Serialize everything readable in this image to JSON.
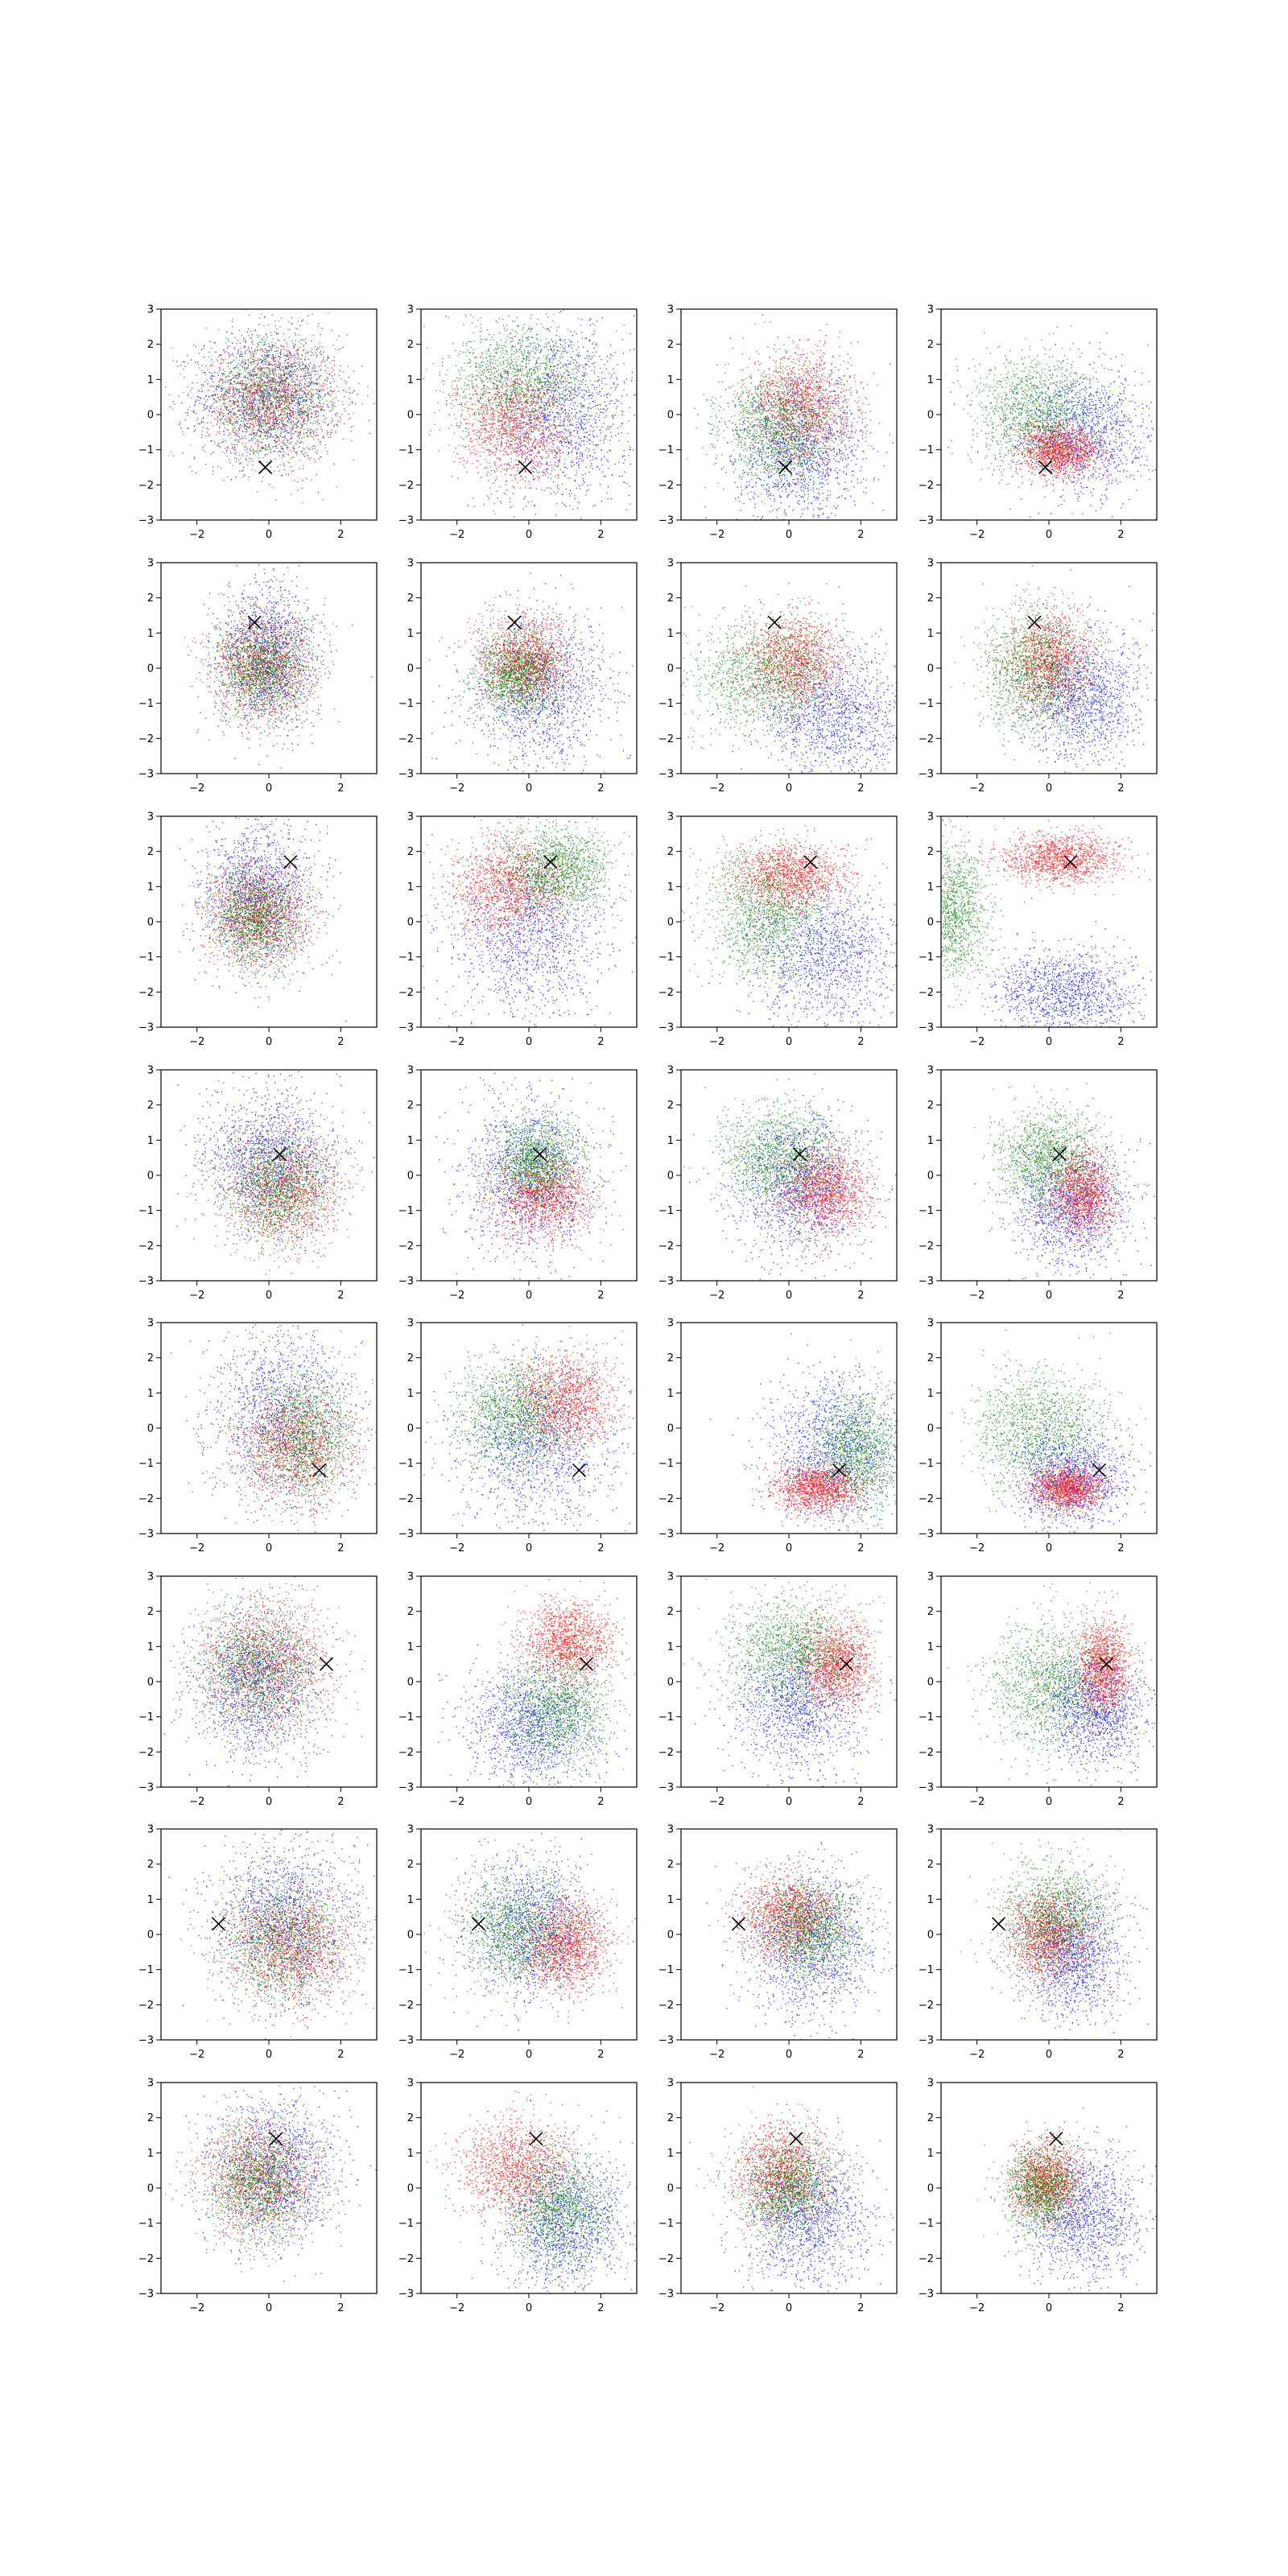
{
  "chart_data": {
    "type": "scatter",
    "layout": {
      "rows": 8,
      "cols": 4
    },
    "xlim": [
      -3,
      3
    ],
    "ylim": [
      -3,
      3
    ],
    "xticks": [
      -2,
      0,
      2
    ],
    "yticks": [
      -3,
      -2,
      -1,
      0,
      1,
      2,
      3
    ],
    "xtick_labels": [
      "−2",
      "0",
      "2"
    ],
    "ytick_labels": [
      "−3",
      "−2",
      "−1",
      "0",
      "1",
      "2",
      "3"
    ],
    "grid": false,
    "marker_label": "×",
    "colors": {
      "blue": "#0000ff",
      "red": "#ff0000",
      "green": "#008000",
      "marker": "#000000"
    },
    "note": "Each subplot shows three point clouds (blue, red, green) represented here as cluster centers and spreads in data units, plus one black x marker.",
    "rows": [
      {
        "marker": [
          -0.1,
          -1.5
        ],
        "panels": [
          [
            {
              "c": "blue",
              "cx": 0.0,
              "cy": 0.5,
              "sx": 1.0,
              "sy": 0.9
            },
            {
              "c": "red",
              "cx": 0.0,
              "cy": 0.4,
              "sx": 0.9,
              "sy": 0.85
            },
            {
              "c": "green",
              "cx": 0.0,
              "cy": 0.5,
              "sx": 0.9,
              "sy": 0.85
            }
          ],
          [
            {
              "c": "blue",
              "cx": 0.9,
              "cy": 0.0,
              "sx": 1.0,
              "sy": 1.3
            },
            {
              "c": "red",
              "cx": -0.4,
              "cy": -0.3,
              "sx": 0.8,
              "sy": 0.8
            },
            {
              "c": "green",
              "cx": -0.2,
              "cy": 1.0,
              "sx": 1.0,
              "sy": 0.8
            }
          ],
          [
            {
              "c": "blue",
              "cx": 0.3,
              "cy": -1.0,
              "sx": 0.9,
              "sy": 1.0
            },
            {
              "c": "red",
              "cx": 0.4,
              "cy": 0.3,
              "sx": 0.7,
              "sy": 0.8
            },
            {
              "c": "green",
              "cx": -0.3,
              "cy": -0.4,
              "sx": 0.8,
              "sy": 0.8
            }
          ],
          [
            {
              "c": "blue",
              "cx": 0.9,
              "cy": -0.6,
              "sx": 1.0,
              "sy": 0.9
            },
            {
              "c": "red",
              "cx": 0.3,
              "cy": -1.0,
              "sx": 0.55,
              "sy": 0.35
            },
            {
              "c": "green",
              "cx": -0.3,
              "cy": 0.1,
              "sx": 0.9,
              "sy": 0.8
            }
          ]
        ]
      },
      {
        "marker": [
          -0.4,
          1.3
        ],
        "panels": [
          [
            {
              "c": "blue",
              "cx": -0.1,
              "cy": 0.4,
              "sx": 0.7,
              "sy": 1.0
            },
            {
              "c": "red",
              "cx": -0.2,
              "cy": 0.0,
              "sx": 0.7,
              "sy": 0.8
            },
            {
              "c": "green",
              "cx": -0.2,
              "cy": 0.0,
              "sx": 0.6,
              "sy": 0.7
            }
          ],
          [
            {
              "c": "blue",
              "cx": 0.3,
              "cy": -0.6,
              "sx": 1.0,
              "sy": 1.1
            },
            {
              "c": "red",
              "cx": -0.1,
              "cy": 0.2,
              "sx": 0.6,
              "sy": 0.6
            },
            {
              "c": "green",
              "cx": -0.3,
              "cy": -0.2,
              "sx": 0.6,
              "sy": 0.6
            }
          ],
          [
            {
              "c": "blue",
              "cx": 1.3,
              "cy": -1.4,
              "sx": 1.0,
              "sy": 0.9
            },
            {
              "c": "red",
              "cx": 0.2,
              "cy": 0.2,
              "sx": 0.7,
              "sy": 0.7
            },
            {
              "c": "green",
              "cx": -0.7,
              "cy": -0.2,
              "sx": 1.0,
              "sy": 0.8
            }
          ],
          [
            {
              "c": "blue",
              "cx": 1.0,
              "cy": -0.8,
              "sx": 0.8,
              "sy": 0.9
            },
            {
              "c": "red",
              "cx": 0.0,
              "cy": 0.2,
              "sx": 0.6,
              "sy": 0.7
            },
            {
              "c": "green",
              "cx": -0.4,
              "cy": 0.0,
              "sx": 0.7,
              "sy": 0.9
            }
          ]
        ]
      },
      {
        "marker": [
          0.6,
          1.7
        ],
        "panels": [
          [
            {
              "c": "blue",
              "cx": -0.3,
              "cy": 0.8,
              "sx": 0.8,
              "sy": 1.0
            },
            {
              "c": "red",
              "cx": -0.3,
              "cy": 0.2,
              "sx": 0.7,
              "sy": 0.7
            },
            {
              "c": "green",
              "cx": -0.4,
              "cy": 0.1,
              "sx": 0.6,
              "sy": 0.7
            }
          ],
          [
            {
              "c": "blue",
              "cx": 0.0,
              "cy": -0.5,
              "sx": 1.1,
              "sy": 1.2
            },
            {
              "c": "red",
              "cx": -0.6,
              "cy": 1.0,
              "sx": 0.8,
              "sy": 0.7
            },
            {
              "c": "green",
              "cx": 0.8,
              "cy": 1.5,
              "sx": 0.7,
              "sy": 0.6
            }
          ],
          [
            {
              "c": "blue",
              "cx": 1.0,
              "cy": -1.0,
              "sx": 1.0,
              "sy": 1.0
            },
            {
              "c": "red",
              "cx": 0.0,
              "cy": 1.3,
              "sx": 0.8,
              "sy": 0.45
            },
            {
              "c": "green",
              "cx": -0.7,
              "cy": 0.2,
              "sx": 0.8,
              "sy": 0.9
            }
          ],
          [
            {
              "c": "blue",
              "cx": 0.4,
              "cy": -2.0,
              "sx": 1.0,
              "sy": 0.6
            },
            {
              "c": "red",
              "cx": 0.3,
              "cy": 1.8,
              "sx": 0.8,
              "sy": 0.35
            },
            {
              "c": "green",
              "cx": -2.7,
              "cy": 0.3,
              "sx": 0.5,
              "sy": 1.0
            }
          ]
        ]
      },
      {
        "marker": [
          0.3,
          0.6
        ],
        "panels": [
          [
            {
              "c": "blue",
              "cx": 0.0,
              "cy": 0.5,
              "sx": 0.9,
              "sy": 1.0
            },
            {
              "c": "red",
              "cx": 0.4,
              "cy": -0.4,
              "sx": 0.8,
              "sy": 0.8
            },
            {
              "c": "green",
              "cx": 0.2,
              "cy": -0.3,
              "sx": 0.7,
              "sy": 0.8
            }
          ],
          [
            {
              "c": "blue",
              "cx": 0.0,
              "cy": 0.0,
              "sx": 0.9,
              "sy": 1.2
            },
            {
              "c": "red",
              "cx": 0.4,
              "cy": -0.6,
              "sx": 0.7,
              "sy": 0.6
            },
            {
              "c": "green",
              "cx": 0.2,
              "cy": 0.4,
              "sx": 0.6,
              "sy": 0.6
            }
          ],
          [
            {
              "c": "blue",
              "cx": 0.3,
              "cy": -0.3,
              "sx": 0.9,
              "sy": 1.0
            },
            {
              "c": "red",
              "cx": 1.0,
              "cy": -0.4,
              "sx": 0.6,
              "sy": 0.6
            },
            {
              "c": "green",
              "cx": -0.3,
              "cy": 0.5,
              "sx": 0.8,
              "sy": 0.7
            }
          ],
          [
            {
              "c": "blue",
              "cx": 0.6,
              "cy": -0.9,
              "sx": 0.8,
              "sy": 0.8
            },
            {
              "c": "red",
              "cx": 0.9,
              "cy": -0.5,
              "sx": 0.45,
              "sy": 0.6
            },
            {
              "c": "green",
              "cx": 0.0,
              "cy": 0.5,
              "sx": 0.7,
              "sy": 0.7
            }
          ]
        ]
      },
      {
        "marker": [
          1.4,
          -1.2
        ],
        "panels": [
          [
            {
              "c": "blue",
              "cx": 0.3,
              "cy": 0.4,
              "sx": 1.0,
              "sy": 1.3
            },
            {
              "c": "red",
              "cx": 0.7,
              "cy": -0.5,
              "sx": 0.8,
              "sy": 0.8
            },
            {
              "c": "green",
              "cx": 0.9,
              "cy": -0.2,
              "sx": 0.7,
              "sy": 0.9
            }
          ],
          [
            {
              "c": "blue",
              "cx": 0.2,
              "cy": -0.5,
              "sx": 1.1,
              "sy": 1.1
            },
            {
              "c": "red",
              "cx": 1.0,
              "cy": 0.8,
              "sx": 0.7,
              "sy": 0.7
            },
            {
              "c": "green",
              "cx": -0.4,
              "cy": 0.4,
              "sx": 0.8,
              "sy": 0.8
            }
          ],
          [
            {
              "c": "blue",
              "cx": 1.2,
              "cy": -0.6,
              "sx": 0.9,
              "sy": 1.0
            },
            {
              "c": "red",
              "cx": 0.8,
              "cy": -1.7,
              "sx": 0.6,
              "sy": 0.35
            },
            {
              "c": "green",
              "cx": 1.9,
              "cy": -0.6,
              "sx": 0.6,
              "sy": 0.8
            }
          ],
          [
            {
              "c": "blue",
              "cx": 0.6,
              "cy": -1.4,
              "sx": 0.8,
              "sy": 0.7
            },
            {
              "c": "red",
              "cx": 0.5,
              "cy": -1.7,
              "sx": 0.5,
              "sy": 0.3
            },
            {
              "c": "green",
              "cx": -0.3,
              "cy": 0.0,
              "sx": 0.9,
              "sy": 0.8
            }
          ]
        ]
      },
      {
        "marker": [
          1.6,
          0.5
        ],
        "panels": [
          [
            {
              "c": "blue",
              "cx": -0.3,
              "cy": -0.1,
              "sx": 0.9,
              "sy": 1.0
            },
            {
              "c": "red",
              "cx": -0.1,
              "cy": 0.5,
              "sx": 0.9,
              "sy": 0.9
            },
            {
              "c": "green",
              "cx": -0.3,
              "cy": 0.4,
              "sx": 0.8,
              "sy": 0.9
            }
          ],
          [
            {
              "c": "blue",
              "cx": 0.1,
              "cy": -1.2,
              "sx": 0.9,
              "sy": 0.9
            },
            {
              "c": "red",
              "cx": 1.1,
              "cy": 1.2,
              "sx": 0.6,
              "sy": 0.55
            },
            {
              "c": "green",
              "cx": 0.8,
              "cy": -0.8,
              "sx": 0.7,
              "sy": 0.8
            }
          ],
          [
            {
              "c": "blue",
              "cx": 0.2,
              "cy": -0.6,
              "sx": 0.9,
              "sy": 0.9
            },
            {
              "c": "red",
              "cx": 1.3,
              "cy": 0.5,
              "sx": 0.5,
              "sy": 0.6
            },
            {
              "c": "green",
              "cx": 0.1,
              "cy": 0.9,
              "sx": 0.9,
              "sy": 0.8
            }
          ],
          [
            {
              "c": "blue",
              "cx": 1.3,
              "cy": -0.8,
              "sx": 0.7,
              "sy": 0.8
            },
            {
              "c": "red",
              "cx": 1.5,
              "cy": 0.4,
              "sx": 0.35,
              "sy": 0.7
            },
            {
              "c": "green",
              "cx": 0.0,
              "cy": 0.0,
              "sx": 0.9,
              "sy": 0.9
            }
          ]
        ]
      },
      {
        "marker": [
          -1.4,
          0.3
        ],
        "panels": [
          [
            {
              "c": "blue",
              "cx": 0.4,
              "cy": 0.5,
              "sx": 1.0,
              "sy": 1.1
            },
            {
              "c": "red",
              "cx": 0.6,
              "cy": -0.3,
              "sx": 0.9,
              "sy": 0.8
            },
            {
              "c": "green",
              "cx": 0.4,
              "cy": -0.2,
              "sx": 0.9,
              "sy": 0.9
            }
          ],
          [
            {
              "c": "blue",
              "cx": 0.1,
              "cy": 0.2,
              "sx": 0.9,
              "sy": 1.0
            },
            {
              "c": "red",
              "cx": 1.0,
              "cy": -0.3,
              "sx": 0.6,
              "sy": 0.6
            },
            {
              "c": "green",
              "cx": -0.3,
              "cy": 0.2,
              "sx": 0.8,
              "sy": 0.8
            }
          ],
          [
            {
              "c": "blue",
              "cx": 0.6,
              "cy": -0.3,
              "sx": 0.9,
              "sy": 1.0
            },
            {
              "c": "red",
              "cx": 0.0,
              "cy": 0.5,
              "sx": 0.7,
              "sy": 0.6
            },
            {
              "c": "green",
              "cx": 0.6,
              "cy": 0.2,
              "sx": 0.7,
              "sy": 0.7
            }
          ],
          [
            {
              "c": "blue",
              "cx": 0.6,
              "cy": -0.6,
              "sx": 0.7,
              "sy": 0.9
            },
            {
              "c": "red",
              "cx": 0.0,
              "cy": 0.0,
              "sx": 0.6,
              "sy": 0.6
            },
            {
              "c": "green",
              "cx": 0.2,
              "cy": 0.5,
              "sx": 0.8,
              "sy": 0.8
            }
          ]
        ]
      },
      {
        "marker": [
          0.2,
          1.4
        ],
        "panels": [
          [
            {
              "c": "blue",
              "cx": 0.2,
              "cy": 0.5,
              "sx": 0.9,
              "sy": 1.0
            },
            {
              "c": "red",
              "cx": -0.3,
              "cy": 0.3,
              "sx": 0.8,
              "sy": 0.8
            },
            {
              "c": "green",
              "cx": -0.3,
              "cy": 0.2,
              "sx": 0.7,
              "sy": 0.8
            }
          ],
          [
            {
              "c": "blue",
              "cx": 1.0,
              "cy": -1.0,
              "sx": 0.9,
              "sy": 1.0
            },
            {
              "c": "red",
              "cx": -0.4,
              "cy": 0.6,
              "sx": 0.8,
              "sy": 0.7
            },
            {
              "c": "green",
              "cx": 0.8,
              "cy": -0.6,
              "sx": 0.7,
              "sy": 0.8
            }
          ],
          [
            {
              "c": "blue",
              "cx": 0.5,
              "cy": -0.9,
              "sx": 0.9,
              "sy": 1.0
            },
            {
              "c": "red",
              "cx": -0.2,
              "cy": 0.4,
              "sx": 0.7,
              "sy": 0.7
            },
            {
              "c": "green",
              "cx": 0.0,
              "cy": 0.0,
              "sx": 0.6,
              "sy": 0.7
            }
          ],
          [
            {
              "c": "blue",
              "cx": 1.0,
              "cy": -0.8,
              "sx": 0.8,
              "sy": 0.9
            },
            {
              "c": "red",
              "cx": -0.1,
              "cy": 0.2,
              "sx": 0.5,
              "sy": 0.55
            },
            {
              "c": "green",
              "cx": -0.2,
              "cy": 0.0,
              "sx": 0.5,
              "sy": 0.6
            }
          ]
        ]
      }
    ]
  }
}
